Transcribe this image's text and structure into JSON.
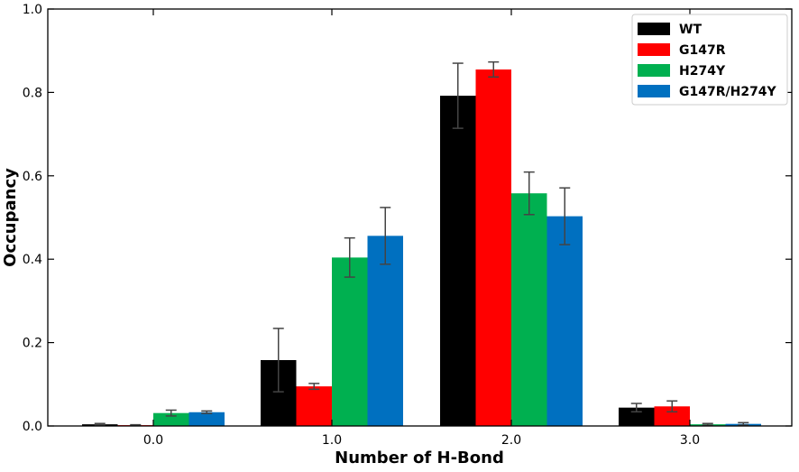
{
  "chart_data": {
    "type": "bar",
    "title": "",
    "xlabel": "Number of H-Bond",
    "ylabel": "Occupancy",
    "categories": [
      "0.0",
      "1.0",
      "2.0",
      "3.0"
    ],
    "ylim": [
      0,
      1.0
    ],
    "yticks": [
      "0.0",
      "0.2",
      "0.4",
      "0.6",
      "0.8",
      "1.0"
    ],
    "grid": false,
    "legend_position": "top-right",
    "series": [
      {
        "name": "WT",
        "color": "#000000",
        "values": [
          0.004,
          0.158,
          0.792,
          0.044
        ],
        "errors": [
          0.002,
          0.076,
          0.078,
          0.01
        ]
      },
      {
        "name": "G147R",
        "color": "#ff0000",
        "values": [
          0.002,
          0.095,
          0.855,
          0.047
        ],
        "errors": [
          0.001,
          0.007,
          0.018,
          0.013
        ]
      },
      {
        "name": "H274Y",
        "color": "#00b050",
        "values": [
          0.031,
          0.404,
          0.558,
          0.004
        ],
        "errors": [
          0.007,
          0.047,
          0.051,
          0.002
        ]
      },
      {
        "name": "G147R/H274Y",
        "color": "#0070c0",
        "values": [
          0.033,
          0.456,
          0.503,
          0.005
        ],
        "errors": [
          0.003,
          0.068,
          0.068,
          0.003
        ]
      }
    ]
  }
}
